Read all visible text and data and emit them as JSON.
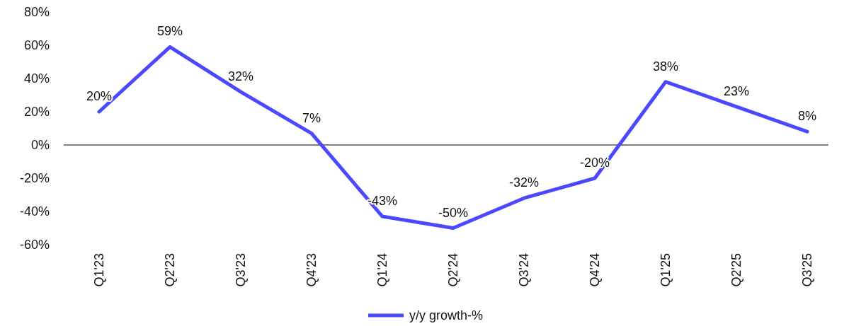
{
  "chart_data": {
    "type": "line",
    "categories": [
      "Q1'23",
      "Q2'23",
      "Q3'23",
      "Q4'23",
      "Q1'24",
      "Q2'24",
      "Q3'24",
      "Q4'24",
      "Q1'25",
      "Q2'25",
      "Q3'25"
    ],
    "series": [
      {
        "name": "y/y growth-%",
        "color": "#4b48ff",
        "values": [
          20,
          59,
          32,
          7,
          -43,
          -50,
          -32,
          -20,
          38,
          23,
          8
        ],
        "value_labels": [
          "20%",
          "59%",
          "32%",
          "7%",
          "-43%",
          "-50%",
          "-32%",
          "-20%",
          "38%",
          "23%",
          "8%"
        ]
      }
    ],
    "ylim": [
      -60,
      80
    ],
    "yticks": [
      {
        "value": -60,
        "label": "-60%"
      },
      {
        "value": -40,
        "label": "-40%"
      },
      {
        "value": -20,
        "label": "-20%"
      },
      {
        "value": 0,
        "label": "0%"
      },
      {
        "value": 20,
        "label": "20%"
      },
      {
        "value": 40,
        "label": "40%"
      },
      {
        "value": 60,
        "label": "60%"
      },
      {
        "value": 80,
        "label": "80%"
      }
    ],
    "legend": "bottom",
    "marker": "none",
    "line_style": "solid"
  }
}
